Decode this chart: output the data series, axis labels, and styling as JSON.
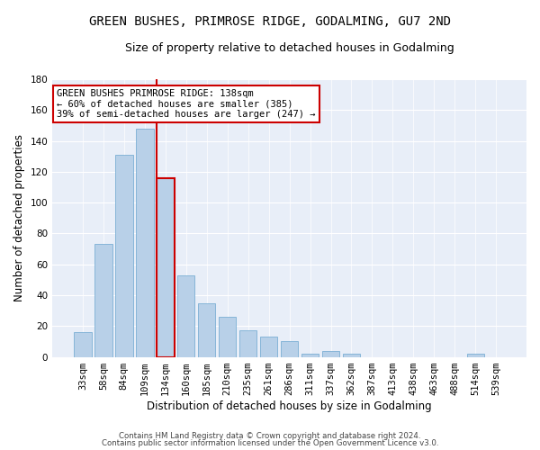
{
  "title": "GREEN BUSHES, PRIMROSE RIDGE, GODALMING, GU7 2ND",
  "subtitle": "Size of property relative to detached houses in Godalming",
  "xlabel": "Distribution of detached houses by size in Godalming",
  "ylabel": "Number of detached properties",
  "categories": [
    "33sqm",
    "58sqm",
    "84sqm",
    "109sqm",
    "134sqm",
    "160sqm",
    "185sqm",
    "210sqm",
    "235sqm",
    "261sqm",
    "286sqm",
    "311sqm",
    "337sqm",
    "362sqm",
    "387sqm",
    "413sqm",
    "438sqm",
    "463sqm",
    "488sqm",
    "514sqm",
    "539sqm"
  ],
  "values": [
    16,
    73,
    131,
    148,
    116,
    53,
    35,
    26,
    17,
    13,
    10,
    2,
    4,
    2,
    0,
    0,
    0,
    0,
    0,
    2,
    0
  ],
  "bar_color": "#b8d0e8",
  "bar_edge_color": "#7bafd4",
  "highlight_bar_index": 4,
  "vline_color": "#cc0000",
  "ylim": [
    0,
    180
  ],
  "yticks": [
    0,
    20,
    40,
    60,
    80,
    100,
    120,
    140,
    160,
    180
  ],
  "annotation_text": "GREEN BUSHES PRIMROSE RIDGE: 138sqm\n← 60% of detached houses are smaller (385)\n39% of semi-detached houses are larger (247) →",
  "annotation_box_color": "#ffffff",
  "annotation_box_edge": "#cc0000",
  "bg_color": "#e8eef8",
  "footer_line1": "Contains HM Land Registry data © Crown copyright and database right 2024.",
  "footer_line2": "Contains public sector information licensed under the Open Government Licence v3.0.",
  "title_fontsize": 10,
  "subtitle_fontsize": 9,
  "xlabel_fontsize": 8.5,
  "ylabel_fontsize": 8.5,
  "tick_fontsize": 7.5,
  "annotation_fontsize": 7.5
}
